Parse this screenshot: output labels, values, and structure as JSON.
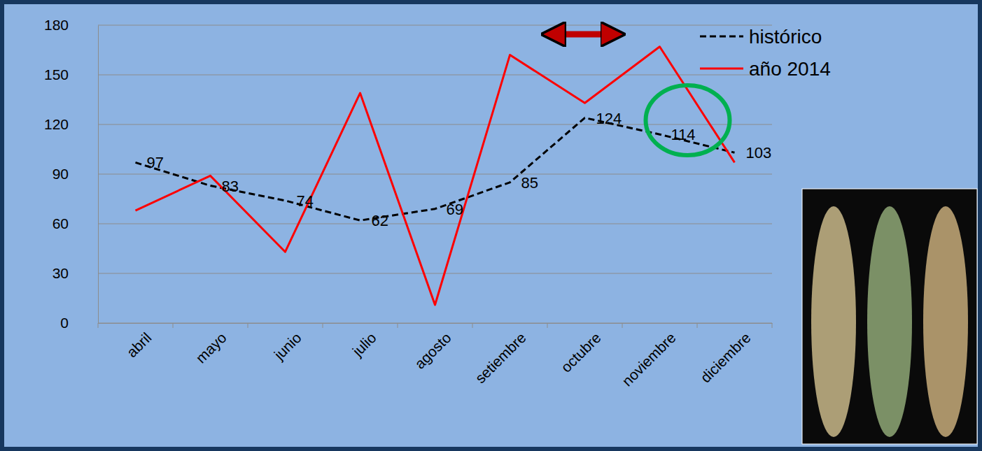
{
  "chart_data": {
    "type": "line",
    "categories": [
      "abril",
      "mayo",
      "junio",
      "julio",
      "agosto",
      "setiembre",
      "octubre",
      "noviembre",
      "diciembre"
    ],
    "ylim": [
      0,
      180
    ],
    "yticks": [
      0,
      30,
      60,
      90,
      120,
      150,
      180
    ],
    "grid": true,
    "legend": "right",
    "series": [
      {
        "name": "histórico",
        "color": "#000000",
        "line_style": "dashed",
        "data_labels": true,
        "values": [
          97,
          83,
          74,
          62,
          69,
          85,
          124,
          114,
          103
        ]
      },
      {
        "name": "año 2014",
        "color": "#ff0000",
        "line_style": "solid",
        "values": [
          68,
          89,
          43,
          139,
          11,
          162,
          133,
          167,
          97
        ]
      }
    ]
  }
}
